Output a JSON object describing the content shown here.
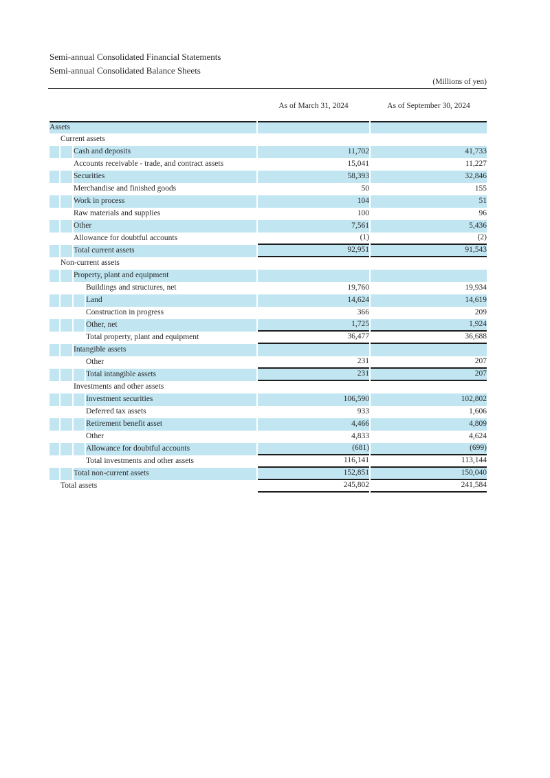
{
  "page": {
    "title_line1": "Semi-annual Consolidated Financial Statements",
    "title_line2": "Semi-annual Consolidated Balance Sheets",
    "unit_note": "(Millions of yen)"
  },
  "colors": {
    "row_highlight": "#c1e6f2",
    "rule_line": "#1c1c1c"
  },
  "table": {
    "columns": [
      "As of March 31, 2024",
      "As of September 30, 2024"
    ],
    "rows": [
      {
        "label": "Assets",
        "level": 0,
        "shaded": true,
        "v1": "",
        "v2": "",
        "underline": false
      },
      {
        "label": "Current assets",
        "level": 1,
        "shaded": false,
        "v1": "",
        "v2": "",
        "underline": false
      },
      {
        "label": "Cash and deposits",
        "level": 2,
        "shaded": true,
        "v1": "11,702",
        "v2": "41,733",
        "underline": false
      },
      {
        "label": "Accounts receivable - trade, and contract assets",
        "level": 2,
        "shaded": false,
        "v1": "15,041",
        "v2": "11,227",
        "underline": false
      },
      {
        "label": "Securities",
        "level": 2,
        "shaded": true,
        "v1": "58,393",
        "v2": "32,846",
        "underline": false
      },
      {
        "label": "Merchandise and finished goods",
        "level": 2,
        "shaded": false,
        "v1": "50",
        "v2": "155",
        "underline": false
      },
      {
        "label": "Work in process",
        "level": 2,
        "shaded": true,
        "v1": "104",
        "v2": "51",
        "underline": false
      },
      {
        "label": "Raw materials and supplies",
        "level": 2,
        "shaded": false,
        "v1": "100",
        "v2": "96",
        "underline": false
      },
      {
        "label": "Other",
        "level": 2,
        "shaded": true,
        "v1": "7,561",
        "v2": "5,436",
        "underline": false
      },
      {
        "label": "Allowance for doubtful accounts",
        "level": 2,
        "shaded": false,
        "v1": "(1)",
        "v2": "(2)",
        "underline": true
      },
      {
        "label": "Total current assets",
        "level": 2,
        "shaded": true,
        "v1": "92,951",
        "v2": "91,543",
        "underline": true
      },
      {
        "label": "Non-current assets",
        "level": 1,
        "shaded": false,
        "v1": "",
        "v2": "",
        "underline": false
      },
      {
        "label": "Property, plant and equipment",
        "level": 2,
        "shaded": true,
        "v1": "",
        "v2": "",
        "underline": false
      },
      {
        "label": "Buildings and structures, net",
        "level": 3,
        "shaded": false,
        "v1": "19,760",
        "v2": "19,934",
        "underline": false
      },
      {
        "label": "Land",
        "level": 3,
        "shaded": true,
        "v1": "14,624",
        "v2": "14,619",
        "underline": false
      },
      {
        "label": "Construction in progress",
        "level": 3,
        "shaded": false,
        "v1": "366",
        "v2": "209",
        "underline": false
      },
      {
        "label": "Other, net",
        "level": 3,
        "shaded": true,
        "v1": "1,725",
        "v2": "1,924",
        "underline": true
      },
      {
        "label": "Total property, plant and equipment",
        "level": 3,
        "shaded": false,
        "v1": "36,477",
        "v2": "36,688",
        "underline": true
      },
      {
        "label": "Intangible assets",
        "level": 2,
        "shaded": true,
        "v1": "",
        "v2": "",
        "underline": false
      },
      {
        "label": "Other",
        "level": 3,
        "shaded": false,
        "v1": "231",
        "v2": "207",
        "underline": true
      },
      {
        "label": "Total intangible assets",
        "level": 3,
        "shaded": true,
        "v1": "231",
        "v2": "207",
        "underline": true
      },
      {
        "label": "Investments and other assets",
        "level": 2,
        "shaded": false,
        "v1": "",
        "v2": "",
        "underline": false
      },
      {
        "label": "Investment securities",
        "level": 3,
        "shaded": true,
        "v1": "106,590",
        "v2": "102,802",
        "underline": false
      },
      {
        "label": "Deferred tax assets",
        "level": 3,
        "shaded": false,
        "v1": "933",
        "v2": "1,606",
        "underline": false
      },
      {
        "label": "Retirement benefit asset",
        "level": 3,
        "shaded": true,
        "v1": "4,466",
        "v2": "4,809",
        "underline": false
      },
      {
        "label": "Other",
        "level": 3,
        "shaded": false,
        "v1": "4,833",
        "v2": "4,624",
        "underline": false
      },
      {
        "label": "Allowance for doubtful accounts",
        "level": 3,
        "shaded": true,
        "v1": "(681)",
        "v2": "(699)",
        "underline": true
      },
      {
        "label": "Total investments and other assets",
        "level": 3,
        "shaded": false,
        "v1": "116,141",
        "v2": "113,144",
        "underline": true
      },
      {
        "label": "Total non-current assets",
        "level": 2,
        "shaded": true,
        "v1": "152,851",
        "v2": "150,040",
        "underline": true
      },
      {
        "label": "Total assets",
        "level": 1,
        "shaded": false,
        "v1": "245,802",
        "v2": "241,584",
        "underline": true
      }
    ]
  }
}
